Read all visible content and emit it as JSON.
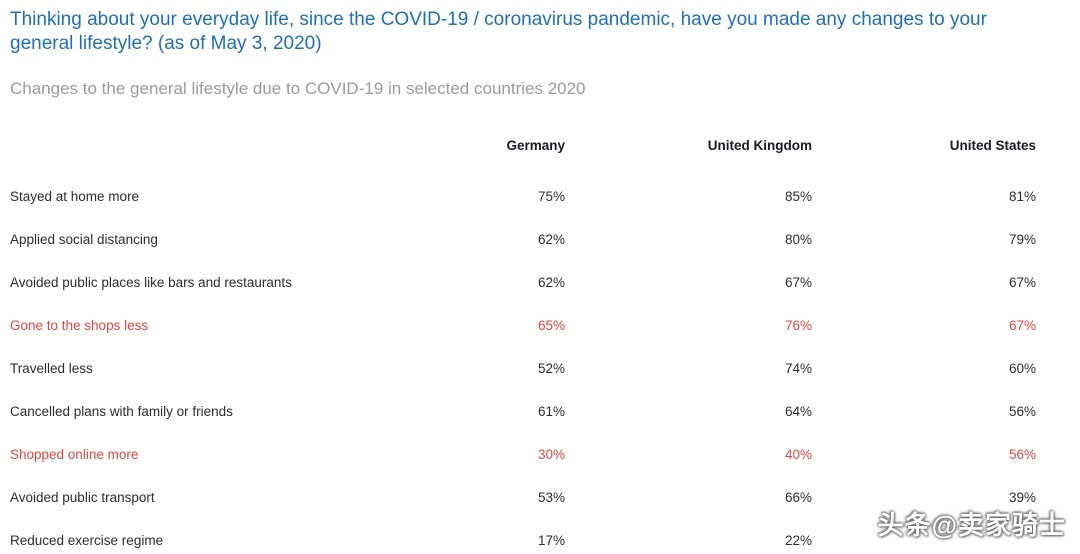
{
  "title": "Thinking about your everyday life, since the COVID-19 / coronavirus pandemic, have you made any changes to your general lifestyle? (as of May 3, 2020)",
  "subtitle": "Changes to the general lifestyle due to COVID-19 in selected countries 2020",
  "watermark": "头条@卖家骑士",
  "colors": {
    "title_blue": "#1a6fc4",
    "subtitle_gray": "#9b9b9b",
    "highlight_red": "#e8453c",
    "text_dark": "#2b2b33"
  },
  "chart_data": {
    "type": "table",
    "title": "Changes to the general lifestyle due to COVID-19 in selected countries 2020",
    "columns": [
      "Germany",
      "United Kingdom",
      "United States"
    ],
    "rows": [
      {
        "label": "Stayed at home more",
        "values": [
          "75%",
          "85%",
          "81%"
        ],
        "highlight": false
      },
      {
        "label": "Applied social distancing",
        "values": [
          "62%",
          "80%",
          "79%"
        ],
        "highlight": false
      },
      {
        "label": "Avoided public places like bars and restaurants",
        "values": [
          "62%",
          "67%",
          "67%"
        ],
        "highlight": false
      },
      {
        "label": "Gone to the shops less",
        "values": [
          "65%",
          "76%",
          "67%"
        ],
        "highlight": true
      },
      {
        "label": "Travelled less",
        "values": [
          "52%",
          "74%",
          "60%"
        ],
        "highlight": false
      },
      {
        "label": "Cancelled plans with family or friends",
        "values": [
          "61%",
          "64%",
          "56%"
        ],
        "highlight": false
      },
      {
        "label": "Shopped online more",
        "values": [
          "30%",
          "40%",
          "56%"
        ],
        "highlight": true
      },
      {
        "label": "Avoided public transport",
        "values": [
          "53%",
          "66%",
          "39%"
        ],
        "highlight": false
      },
      {
        "label": "Reduced exercise regime",
        "values": [
          "17%",
          "22%",
          ""
        ],
        "highlight": false
      }
    ]
  }
}
